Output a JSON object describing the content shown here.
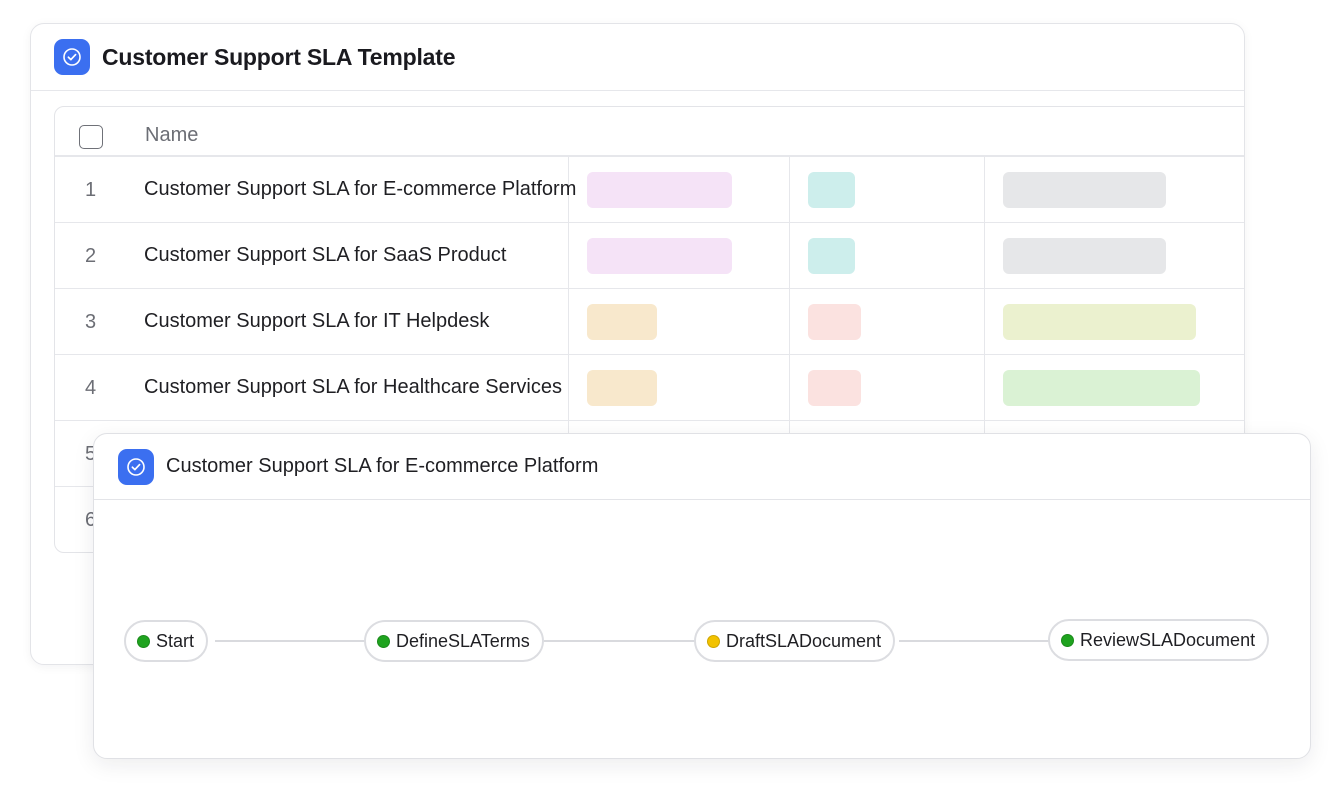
{
  "template_card": {
    "title": "Customer Support SLA Template",
    "icon": "check-circle-icon",
    "accent": "#3b6ff0"
  },
  "table": {
    "header": {
      "name_label": "Name"
    },
    "rows": [
      {
        "num": "1",
        "name": "Customer Support SLA for E-commerce Platform",
        "tags": [
          "#f5e3f7",
          "#cdeeec",
          "#e6e7e9"
        ]
      },
      {
        "num": "2",
        "name": "Customer Support SLA for SaaS Product",
        "tags": [
          "#f5e3f7",
          "#cdeeec",
          "#e6e7e9"
        ]
      },
      {
        "num": "3",
        "name": "Customer Support SLA for IT Helpdesk",
        "tags": [
          "#f8e8cc",
          "#fbe2e0",
          "#ebf1cf"
        ]
      },
      {
        "num": "4",
        "name": "Customer Support SLA for Healthcare Services",
        "tags": [
          "#f8e8cc",
          "#fbe2e0",
          "#daf2d4"
        ]
      },
      {
        "num": "5",
        "name": "",
        "tags": []
      },
      {
        "num": "6",
        "name": "",
        "tags": []
      }
    ]
  },
  "workflow_card": {
    "title": "Customer Support SLA for E-commerce Platform",
    "icon": "check-circle-icon",
    "nodes": [
      {
        "label": "Start",
        "status_color": "#1fa31f"
      },
      {
        "label": "DefineSLATerms",
        "status_color": "#1fa31f"
      },
      {
        "label": "DraftSLADocument",
        "status_color": "#f2c200"
      },
      {
        "label": "ReviewSLADocument",
        "status_color": "#1fa31f"
      }
    ]
  }
}
